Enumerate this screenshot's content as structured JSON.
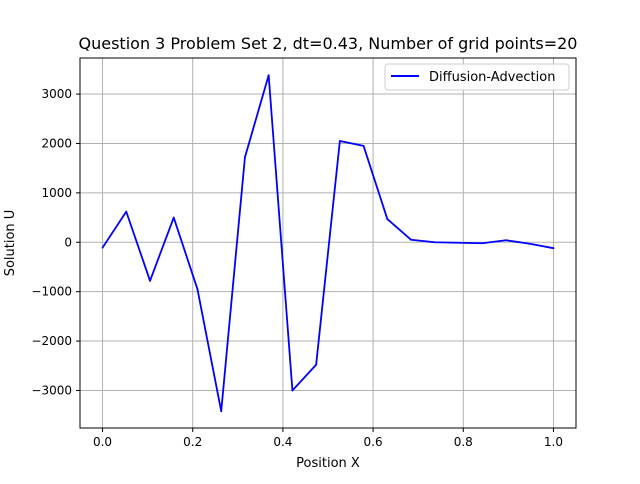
{
  "chart_data": {
    "type": "line",
    "title": "Question 3 Problem Set 2, dt=0.43, Number of grid points=20",
    "xlabel": "Position X",
    "ylabel": "Solution U",
    "xlim": [
      -0.05,
      1.05
    ],
    "ylim": [
      -3760,
      3730
    ],
    "xticks": [
      0.0,
      0.2,
      0.4,
      0.6,
      0.8,
      1.0
    ],
    "xtick_labels": [
      "0.0",
      "0.2",
      "0.4",
      "0.6",
      "0.8",
      "1.0"
    ],
    "yticks": [
      -3000,
      -2000,
      -1000,
      0,
      1000,
      2000,
      3000
    ],
    "ytick_labels": [
      "−3000",
      "−2000",
      "−1000",
      "0",
      "1000",
      "2000",
      "3000"
    ],
    "grid": true,
    "legend_position": "top-right",
    "series": [
      {
        "name": "Diffusion-Advection",
        "color": "#0000ff",
        "x": [
          0.0,
          0.0526,
          0.1053,
          0.1579,
          0.2105,
          0.2632,
          0.3158,
          0.3684,
          0.4211,
          0.4737,
          0.5263,
          0.5789,
          0.6316,
          0.6842,
          0.7368,
          0.7895,
          0.8421,
          0.8947,
          0.9474,
          1.0
        ],
        "y": [
          -110,
          620,
          -780,
          500,
          -950,
          -3420,
          1720,
          3380,
          -3000,
          -2480,
          2050,
          1950,
          470,
          50,
          0,
          -10,
          -20,
          40,
          -30,
          -120
        ]
      }
    ]
  }
}
